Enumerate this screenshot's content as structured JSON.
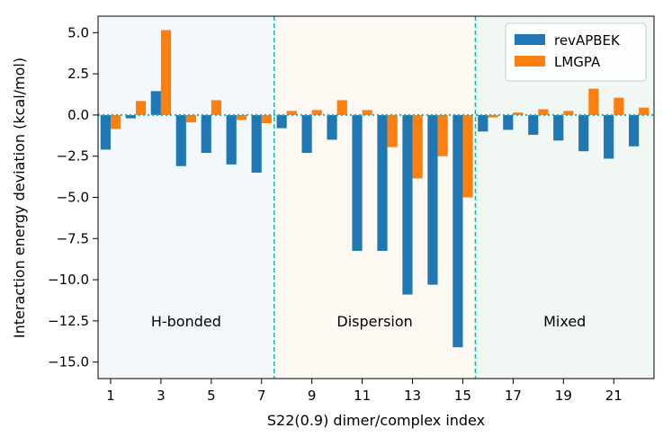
{
  "chart_data": {
    "type": "bar",
    "title": "",
    "xlabel": "S22(0.9) dimer/complex index",
    "ylabel": "Interaction energy deviation (kcal/mol)",
    "xlim": [
      0.5,
      22.6
    ],
    "ylim": [
      -16.0,
      6.0
    ],
    "x_ticks": [
      1,
      3,
      5,
      7,
      9,
      11,
      13,
      15,
      17,
      19,
      21
    ],
    "y_ticks": [
      5.0,
      2.5,
      0.0,
      -2.5,
      -5.0,
      -7.5,
      -10.0,
      -12.5,
      -15.0
    ],
    "y_tick_labels": [
      "5.0",
      "2.5",
      "0.0",
      "−2.5",
      "−5.0",
      "−7.5",
      "−10.0",
      "−12.5",
      "−15.0"
    ],
    "categories": [
      1,
      2,
      3,
      4,
      5,
      6,
      7,
      8,
      9,
      10,
      11,
      12,
      13,
      14,
      15,
      16,
      17,
      18,
      19,
      20,
      21,
      22
    ],
    "series": [
      {
        "name": "revAPBEK",
        "color": "#1f77b4",
        "values": [
          -2.1,
          -0.2,
          1.45,
          -3.1,
          -2.3,
          -3.0,
          -3.5,
          -0.8,
          -2.3,
          -1.5,
          -8.25,
          -8.25,
          -10.9,
          -10.3,
          -14.1,
          -1.0,
          -0.9,
          -1.2,
          -1.55,
          -2.2,
          -2.65,
          -1.9
        ]
      },
      {
        "name": "LMGPA",
        "color": "#ff7f0e",
        "values": [
          -0.85,
          0.85,
          5.15,
          -0.45,
          0.9,
          -0.3,
          -0.5,
          0.25,
          0.3,
          0.9,
          0.3,
          -1.95,
          -3.85,
          -2.5,
          -5.0,
          -0.15,
          0.15,
          0.35,
          0.25,
          1.6,
          1.05,
          0.45
        ]
      }
    ],
    "regions": [
      {
        "label": "H-bonded",
        "x_start": 0.5,
        "x_end": 7.5,
        "color": "#f3f8fd"
      },
      {
        "label": "Dispersion",
        "x_start": 7.5,
        "x_end": 15.5,
        "color": "#fef9f2"
      },
      {
        "label": "Mixed",
        "x_start": 15.5,
        "x_end": 22.6,
        "color": "#f1f7f3"
      }
    ],
    "region_label_y": -12.5,
    "separators_x": [
      7.5,
      15.5
    ],
    "separator_color": "#20b2aa",
    "zero_line_color": "#20b2aa",
    "legend_position": "top-right",
    "grid": false
  }
}
